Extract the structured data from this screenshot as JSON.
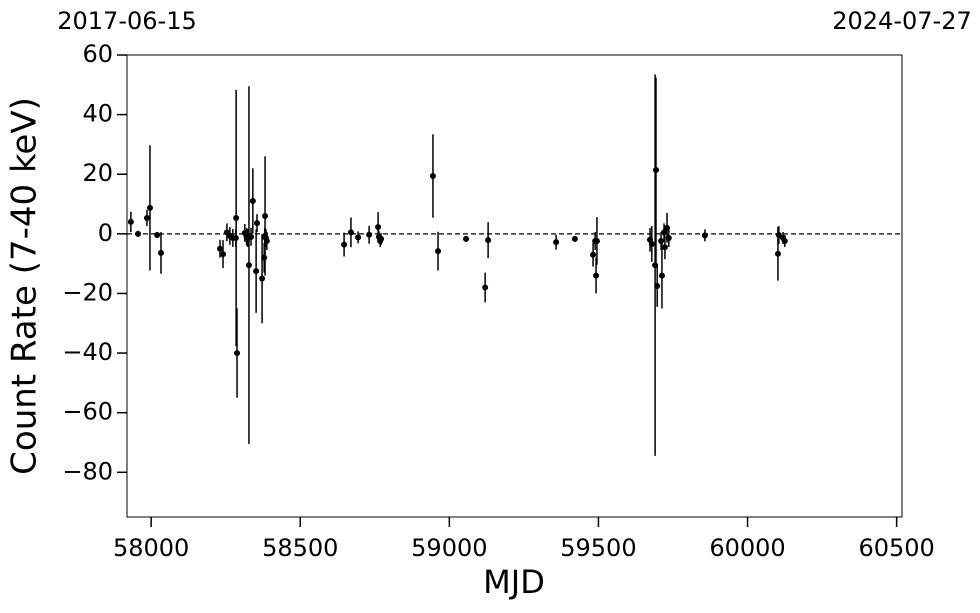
{
  "chart_data": {
    "type": "errorbar",
    "xlabel": "MJD",
    "ylabel": "Count Rate (7-40 keV)",
    "top_xticks": [
      {
        "value": 57919,
        "label": "2017-06-15"
      },
      {
        "value": 60518,
        "label": "2024-07-27"
      }
    ],
    "xlim": [
      57919,
      60518
    ],
    "ylim": [
      -95,
      60
    ],
    "xticks": [
      58000,
      58500,
      59000,
      59500,
      60000,
      60500
    ],
    "yticks": [
      {
        "value": -80,
        "label": "−80"
      },
      {
        "value": -60,
        "label": "−60"
      },
      {
        "value": -40,
        "label": "−40"
      },
      {
        "value": -20,
        "label": "−20"
      },
      0,
      20,
      40,
      60
    ],
    "hline": 0,
    "color": "#000000",
    "x": [
      57932,
      57956,
      57986,
      57996,
      58020,
      58033,
      58231,
      58241,
      58254,
      58264,
      58274,
      58284,
      58285,
      58288,
      58314,
      58320,
      58324,
      58328,
      58335,
      58341,
      58352,
      58355,
      58372,
      58379,
      58381,
      58382,
      58385,
      58388,
      58647,
      58670,
      58694,
      58731,
      58761,
      58764,
      58771,
      58768,
      58945,
      58962,
      59056,
      59120,
      59130,
      59358,
      59421,
      59482,
      59489,
      59492,
      59495,
      59673,
      59679,
      59690,
      59693,
      59697,
      59710,
      59713,
      59720,
      59723,
      59730,
      59736,
      59857,
      60102,
      60105,
      60119,
      60125
    ],
    "values": [
      4,
      0,
      5.3,
      8.7,
      -0.4,
      -6.4,
      -5,
      -6.8,
      0.5,
      -0.7,
      -1.4,
      -1.4,
      5.3,
      -40,
      0.3,
      -1,
      -1.4,
      -10.5,
      -1,
      11,
      -12.5,
      3.6,
      -15,
      -8,
      -1,
      6,
      -1.4,
      -2.4,
      -3.6,
      0.5,
      -1.2,
      -0.3,
      2.3,
      -1,
      -1.7,
      -2.4,
      19.4,
      -5.8,
      -1.7,
      -18,
      -2.1,
      -2.8,
      -1.7,
      -7,
      -2.4,
      -14,
      -2.4,
      -2,
      -3.4,
      -10.5,
      21.4,
      -17.5,
      -2.4,
      -14,
      0.5,
      -4.5,
      2,
      -1.4,
      -0.5,
      -6.7,
      -0.4,
      -1.4,
      -2.4
    ],
    "yerr": [
      3.4,
      1,
      2.7,
      21,
      1,
      7,
      3,
      4.7,
      3,
      3,
      3,
      3,
      43,
      15,
      3,
      3,
      3,
      60,
      3,
      11,
      14,
      3,
      15,
      5,
      3,
      20,
      3,
      3,
      4,
      5,
      2,
      3,
      5,
      2,
      2,
      2,
      14,
      6.5,
      1,
      5,
      6,
      2.5,
      1,
      4,
      3,
      6,
      8,
      4,
      6,
      64,
      31,
      7,
      3,
      11,
      3,
      4,
      5,
      3,
      2,
      9,
      3,
      2,
      2
    ]
  }
}
